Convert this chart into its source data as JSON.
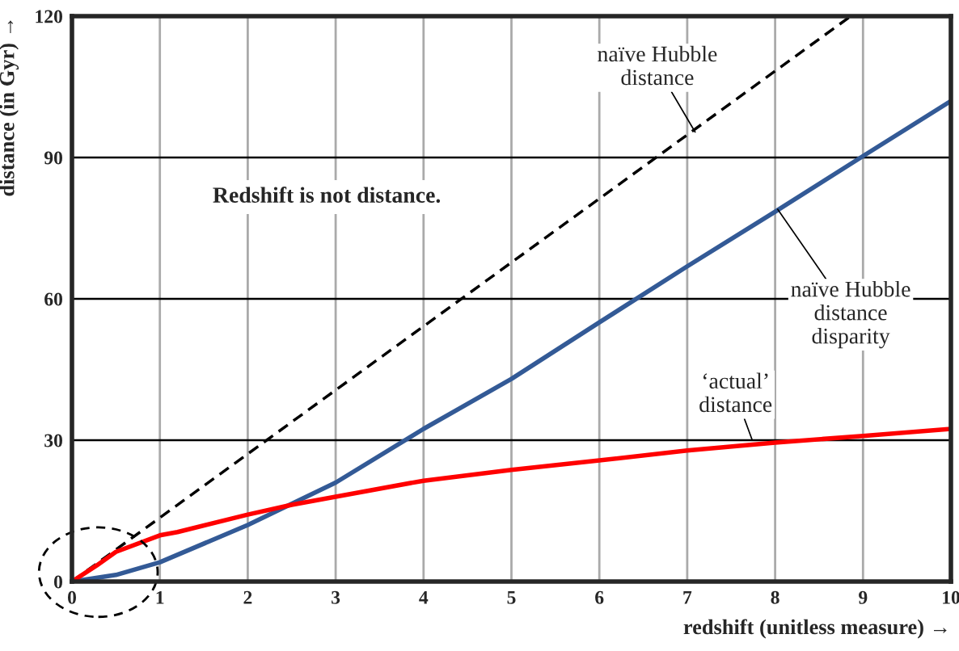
{
  "chart_data": {
    "type": "line",
    "xlabel": "redshift (unitless measure) →",
    "ylabel": "distance (in Gyr) →",
    "xlim": [
      0,
      10
    ],
    "ylim": [
      0,
      120
    ],
    "xticks": [
      0,
      1,
      2,
      3,
      4,
      5,
      6,
      7,
      8,
      9,
      10
    ],
    "yticks": [
      0,
      30,
      60,
      90,
      120
    ],
    "grid": true,
    "series": [
      {
        "color": "#000000",
        "line_style": "dashed",
        "x": [
          0,
          8.86
        ],
        "values": [
          0,
          120
        ]
      },
      {
        "color": "#335a96",
        "line_style": "solid",
        "x": [
          0,
          0.5,
          1,
          2,
          3,
          4,
          5,
          6,
          7,
          8,
          9,
          10
        ],
        "values": [
          0,
          1.4,
          4.1,
          12,
          21,
          32.4,
          43,
          55,
          66.9,
          78.5,
          90.3,
          102
        ]
      },
      {
        "color": "#ff0000",
        "line_style": "solid",
        "x": [
          0,
          0.28,
          0.5,
          1,
          1.2,
          2,
          2.5,
          3,
          4,
          5,
          6,
          7,
          8,
          9,
          10
        ],
        "values": [
          0,
          3.4,
          6.3,
          9.8,
          10.5,
          14.2,
          16.3,
          18,
          21.4,
          23.7,
          25.7,
          27.8,
          29.5,
          30.9,
          32.4
        ]
      }
    ],
    "annotations": [
      {
        "text": "naïve Hubble\ndistance",
        "x": 7.09,
        "y": 95.4
      },
      {
        "text": "naïve Hubble\ndistance\ndisparity",
        "x": 8.03,
        "y": 79
      },
      {
        "text": "‘actual’\ndistance",
        "x": 7.74,
        "y": 30
      },
      "Redshift is not distance."
    ]
  }
}
